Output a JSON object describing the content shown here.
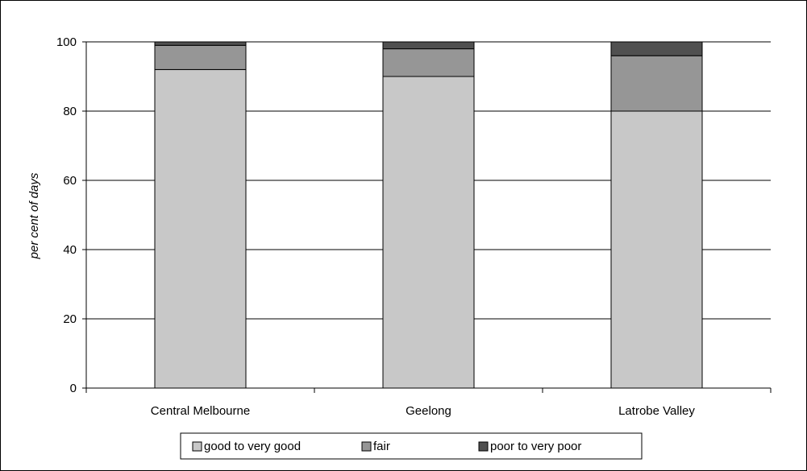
{
  "chart_data": {
    "type": "bar",
    "stacked": true,
    "categories": [
      "Central Melbourne",
      "Geelong",
      "Latrobe  Valley"
    ],
    "series": [
      {
        "name": "good to very good",
        "values": [
          92,
          90,
          80
        ],
        "color": "#c8c8c8"
      },
      {
        "name": "fair",
        "values": [
          7,
          8,
          16
        ],
        "color": "#969696"
      },
      {
        "name": "poor to very poor",
        "values": [
          1,
          2,
          4
        ],
        "color": "#505050"
      }
    ],
    "ylabel": "per cent of days",
    "xlabel": "",
    "ylim": [
      0,
      100
    ],
    "yticks": [
      0,
      20,
      40,
      60,
      80,
      100
    ],
    "grid": true,
    "legend_position": "bottom"
  }
}
